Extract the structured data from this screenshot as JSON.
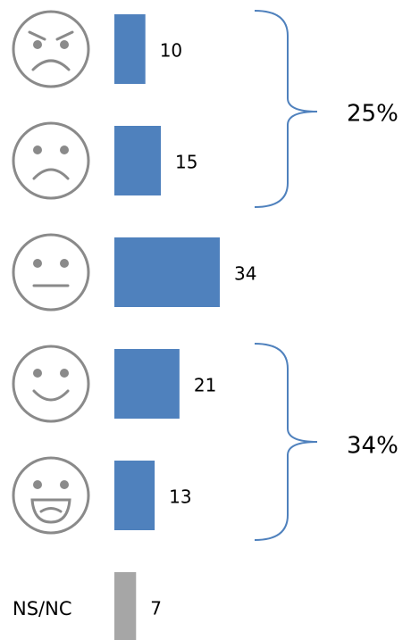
{
  "chart_data": {
    "type": "bar",
    "categories": [
      null,
      null,
      null,
      null,
      null,
      "NS/NC"
    ],
    "values": [
      10,
      15,
      34,
      21,
      13,
      7
    ],
    "colors": [
      "#4f81bd",
      "#4f81bd",
      "#4f81bd",
      "#4f81bd",
      "#4f81bd",
      "#a6a6a6"
    ],
    "annotations": [
      "25%",
      "34%"
    ]
  }
}
